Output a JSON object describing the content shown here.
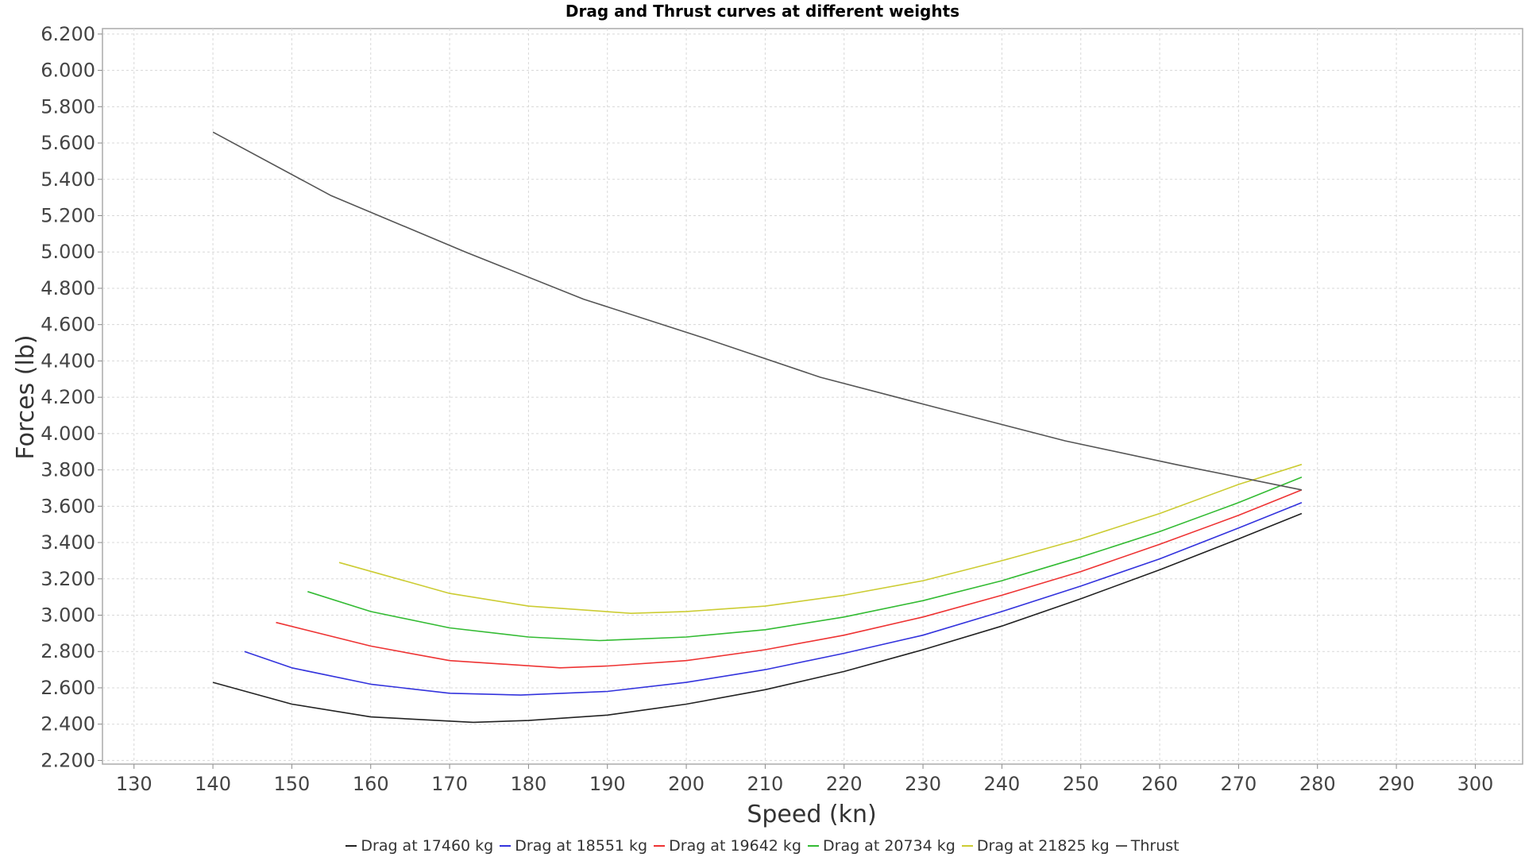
{
  "chart_data": {
    "type": "line",
    "title": "Drag and Thrust curves at different weights",
    "xlabel": "Speed (kn)",
    "ylabel": "Forces (lb)",
    "xlim": [
      126,
      306
    ],
    "ylim": [
      2180,
      6230
    ],
    "x_ticks": [
      130,
      140,
      150,
      160,
      170,
      180,
      190,
      200,
      210,
      220,
      230,
      240,
      250,
      260,
      270,
      280,
      290,
      300
    ],
    "y_ticks": [
      2200,
      2400,
      2600,
      2800,
      3000,
      3200,
      3400,
      3600,
      3800,
      4000,
      4200,
      4400,
      4600,
      4800,
      5000,
      5200,
      5400,
      5600,
      5800,
      6000,
      6200
    ],
    "x_tick_labels": [
      "130",
      "140",
      "150",
      "160",
      "170",
      "180",
      "190",
      "200",
      "210",
      "220",
      "230",
      "240",
      "250",
      "260",
      "270",
      "280",
      "290",
      "300"
    ],
    "y_tick_labels": [
      "2.200",
      "2.400",
      "2.600",
      "2.800",
      "3.000",
      "3.200",
      "3.400",
      "3.600",
      "3.800",
      "4.000",
      "4.200",
      "4.400",
      "4.600",
      "4.800",
      "5.000",
      "5.200",
      "5.400",
      "5.600",
      "5.800",
      "6.000",
      "6.200"
    ],
    "grid": true,
    "legend_position": "bottom",
    "series": [
      {
        "name": "Drag at 17460 kg",
        "color": "#222222",
        "x": [
          140,
          150,
          160,
          173,
          180,
          190,
          200,
          210,
          220,
          230,
          240,
          250,
          260,
          270,
          278
        ],
        "y": [
          2630,
          2510,
          2440,
          2410,
          2420,
          2450,
          2510,
          2590,
          2690,
          2810,
          2940,
          3090,
          3250,
          3420,
          3560
        ]
      },
      {
        "name": "Drag at 18551 kg",
        "color": "#3333dd",
        "x": [
          144,
          150,
          160,
          170,
          179,
          190,
          200,
          210,
          220,
          230,
          240,
          250,
          260,
          270,
          278
        ],
        "y": [
          2800,
          2710,
          2620,
          2570,
          2560,
          2580,
          2630,
          2700,
          2790,
          2890,
          3020,
          3160,
          3310,
          3480,
          3620
        ]
      },
      {
        "name": "Drag at 19642 kg",
        "color": "#ee3333",
        "x": [
          148,
          160,
          170,
          184,
          190,
          200,
          210,
          220,
          230,
          240,
          250,
          260,
          270,
          278
        ],
        "y": [
          2960,
          2830,
          2750,
          2710,
          2720,
          2750,
          2810,
          2890,
          2990,
          3110,
          3240,
          3390,
          3550,
          3690
        ]
      },
      {
        "name": "Drag at 20734 kg",
        "color": "#33bb33",
        "x": [
          152,
          160,
          170,
          180,
          189,
          200,
          210,
          220,
          230,
          240,
          250,
          260,
          270,
          278
        ],
        "y": [
          3130,
          3020,
          2930,
          2880,
          2860,
          2880,
          2920,
          2990,
          3080,
          3190,
          3320,
          3460,
          3620,
          3760
        ]
      },
      {
        "name": "Drag at 21825 kg",
        "color": "#cccc33",
        "x": [
          156,
          170,
          180,
          193,
          200,
          210,
          220,
          230,
          240,
          250,
          260,
          270,
          278
        ],
        "y": [
          3290,
          3120,
          3050,
          3010,
          3020,
          3050,
          3110,
          3190,
          3300,
          3420,
          3560,
          3720,
          3830
        ]
      },
      {
        "name": "Thrust",
        "color": "#555555",
        "x": [
          140,
          155,
          172,
          187,
          202,
          217,
          232,
          248,
          262,
          278
        ],
        "y": [
          5660,
          5310,
          5000,
          4740,
          4530,
          4310,
          4140,
          3960,
          3830,
          3690
        ]
      }
    ]
  }
}
